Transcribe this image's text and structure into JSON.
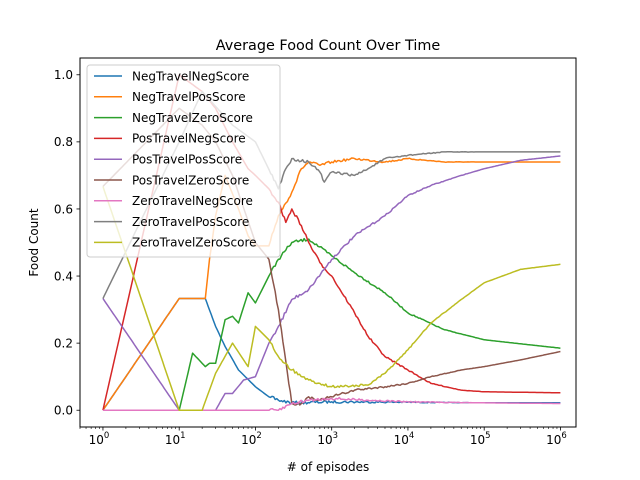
{
  "chart_data": {
    "type": "line",
    "title": "Average Food Count Over Time",
    "xlabel": "# of episodes",
    "ylabel": "Food Count",
    "x_scale": "log",
    "xlim": [
      0.5,
      1600000
    ],
    "ylim": [
      -0.05,
      1.05
    ],
    "x_ticks": [
      {
        "value": 1,
        "base": "10",
        "exp": "0"
      },
      {
        "value": 10,
        "base": "10",
        "exp": "1"
      },
      {
        "value": 100,
        "base": "10",
        "exp": "2"
      },
      {
        "value": 1000,
        "base": "10",
        "exp": "3"
      },
      {
        "value": 10000,
        "base": "10",
        "exp": "4"
      },
      {
        "value": 100000,
        "base": "10",
        "exp": "5"
      },
      {
        "value": 1000000,
        "base": "10",
        "exp": "6"
      }
    ],
    "y_ticks": [
      {
        "value": 0.0,
        "label": "0.0"
      },
      {
        "value": 0.2,
        "label": "0.2"
      },
      {
        "value": 0.4,
        "label": "0.4"
      },
      {
        "value": 0.6,
        "label": "0.6"
      },
      {
        "value": 0.8,
        "label": "0.8"
      },
      {
        "value": 1.0,
        "label": "1.0"
      }
    ],
    "grid": false,
    "legend_position": "top-left",
    "series": [
      {
        "name": "NegTravelNegScore",
        "color": "#1f77b4",
        "x": [
          1,
          10,
          22,
          30,
          40,
          60,
          100,
          150,
          200,
          300,
          1000,
          10000,
          100000,
          1000000
        ],
        "y": [
          0,
          0.333,
          0.333,
          0.25,
          0.19,
          0.12,
          0.07,
          0.04,
          0.03,
          0.022,
          0.025,
          0.024,
          0.022,
          0.022
        ]
      },
      {
        "name": "NegTravelPosScore",
        "color": "#ff7f0e",
        "x": [
          1,
          10,
          22,
          25,
          30,
          40,
          60,
          80,
          100,
          150,
          200,
          300,
          400,
          500,
          700,
          1000,
          2000,
          5000,
          10000,
          30000,
          100000,
          1000000
        ],
        "y": [
          0,
          0.333,
          0.333,
          0.45,
          0.58,
          0.7,
          0.6,
          0.52,
          0.49,
          0.49,
          0.58,
          0.65,
          0.72,
          0.74,
          0.73,
          0.74,
          0.75,
          0.74,
          0.75,
          0.74,
          0.74,
          0.74
        ]
      },
      {
        "name": "NegTravelZeroScore",
        "color": "#2ca02c",
        "x": [
          1,
          10,
          15,
          22,
          25,
          30,
          40,
          50,
          60,
          80,
          100,
          150,
          200,
          300,
          500,
          1000,
          2000,
          5000,
          10000,
          30000,
          100000,
          1000000
        ],
        "y": [
          0,
          0,
          0.17,
          0.13,
          0.14,
          0.14,
          0.27,
          0.28,
          0.26,
          0.35,
          0.32,
          0.4,
          0.45,
          0.5,
          0.51,
          0.46,
          0.41,
          0.35,
          0.29,
          0.24,
          0.21,
          0.185
        ]
      },
      {
        "name": "PosTravelNegScore",
        "color": "#d62728",
        "x": [
          1,
          10,
          20,
          30,
          50,
          80,
          100,
          150,
          200,
          250,
          300,
          400,
          500,
          700,
          1000,
          2000,
          3000,
          5000,
          10000,
          20000,
          50000,
          100000,
          1000000
        ],
        "y": [
          0,
          1.0,
          0.95,
          0.9,
          0.8,
          0.72,
          0.7,
          0.66,
          0.62,
          0.56,
          0.6,
          0.55,
          0.5,
          0.44,
          0.4,
          0.29,
          0.22,
          0.16,
          0.12,
          0.08,
          0.06,
          0.055,
          0.052
        ]
      },
      {
        "name": "PosTravelPosScore",
        "color": "#9467bd",
        "x": [
          1,
          10,
          22,
          30,
          40,
          50,
          70,
          100,
          150,
          200,
          300,
          500,
          1000,
          2000,
          5000,
          10000,
          20000,
          50000,
          100000,
          300000,
          1000000
        ],
        "y": [
          0.333,
          0,
          0,
          0,
          0.05,
          0.05,
          0.09,
          0.1,
          0.2,
          0.25,
          0.33,
          0.36,
          0.45,
          0.52,
          0.58,
          0.64,
          0.67,
          0.7,
          0.72,
          0.745,
          0.758
        ]
      },
      {
        "name": "PosTravelZeroScore",
        "color": "#8c564b",
        "x": [
          1,
          10,
          20,
          30,
          50,
          100,
          150,
          200,
          300,
          400,
          500,
          700,
          1000,
          2000,
          5000,
          10000,
          20000,
          50000,
          100000,
          300000,
          1000000
        ],
        "y": [
          0.667,
          0.9,
          0.85,
          0.8,
          0.7,
          0.5,
          0.45,
          0.3,
          0.02,
          0.02,
          0.04,
          0.03,
          0.04,
          0.06,
          0.07,
          0.08,
          0.1,
          0.12,
          0.13,
          0.15,
          0.175
        ]
      },
      {
        "name": "ZeroTravelNegScore",
        "color": "#e377c2",
        "x": [
          1,
          10,
          100,
          200,
          300,
          500,
          1000,
          3000,
          10000,
          100000,
          1000000
        ],
        "y": [
          0,
          0,
          0,
          0,
          0.02,
          0.03,
          0.035,
          0.03,
          0.025,
          0.022,
          0.02
        ]
      },
      {
        "name": "ZeroTravelPosScore",
        "color": "#7f7f7f",
        "x": [
          1,
          10,
          20,
          50,
          100,
          200,
          250,
          300,
          500,
          700,
          800,
          1000,
          2000,
          3000,
          5000,
          10000,
          30000,
          100000,
          1000000
        ],
        "y": [
          0.333,
          0.8,
          0.95,
          0.85,
          0.8,
          0.66,
          0.72,
          0.75,
          0.74,
          0.71,
          0.68,
          0.71,
          0.7,
          0.72,
          0.75,
          0.76,
          0.77,
          0.77,
          0.77
        ]
      },
      {
        "name": "ZeroTravelZeroScore",
        "color": "#bcbd22",
        "x": [
          1,
          10,
          20,
          30,
          50,
          80,
          100,
          150,
          200,
          300,
          500,
          700,
          1000,
          3000,
          5000,
          10000,
          20000,
          50000,
          100000,
          300000,
          1000000
        ],
        "y": [
          0.667,
          0,
          0,
          0.11,
          0.2,
          0.13,
          0.25,
          0.21,
          0.16,
          0.12,
          0.09,
          0.08,
          0.07,
          0.075,
          0.11,
          0.18,
          0.26,
          0.33,
          0.38,
          0.42,
          0.435
        ]
      }
    ]
  }
}
